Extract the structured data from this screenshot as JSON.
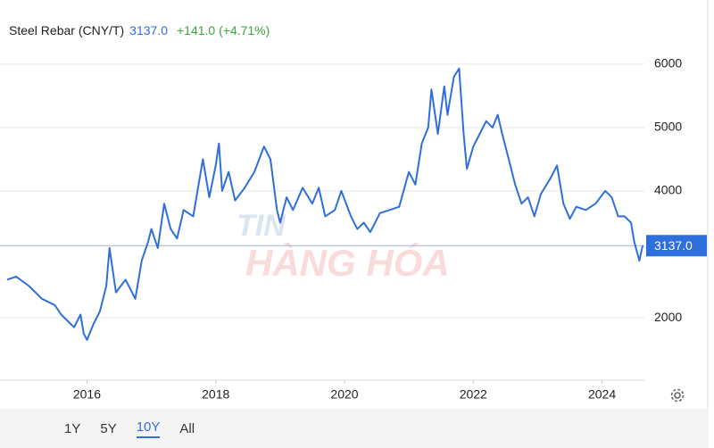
{
  "header": {
    "title": "Steel Rebar (CNY/T)",
    "price": "3137.0",
    "change": "+141.0 (+4.71%)"
  },
  "chart_data": {
    "type": "line",
    "color": "#2f6fdc",
    "x": [
      2014.76,
      2014.9,
      2015.1,
      2015.3,
      2015.5,
      2015.6,
      2015.8,
      2015.9,
      2015.95,
      2016.0,
      2016.1,
      2016.2,
      2016.3,
      2016.35,
      2016.45,
      2016.6,
      2016.75,
      2016.85,
      2016.95,
      2017.0,
      2017.1,
      2017.2,
      2017.3,
      2017.4,
      2017.5,
      2017.65,
      2017.8,
      2017.9,
      2018.0,
      2018.05,
      2018.1,
      2018.2,
      2018.3,
      2018.45,
      2018.6,
      2018.75,
      2018.85,
      2018.95,
      2019.0,
      2019.1,
      2019.2,
      2019.35,
      2019.5,
      2019.6,
      2019.7,
      2019.85,
      2019.95,
      2020.1,
      2020.2,
      2020.3,
      2020.4,
      2020.55,
      2020.7,
      2020.85,
      2021.0,
      2021.1,
      2021.2,
      2021.3,
      2021.35,
      2021.45,
      2021.55,
      2021.6,
      2021.7,
      2021.78,
      2021.85,
      2021.9,
      2022.0,
      2022.1,
      2022.2,
      2022.3,
      2022.38,
      2022.45,
      2022.55,
      2022.65,
      2022.75,
      2022.85,
      2022.95,
      2023.05,
      2023.2,
      2023.3,
      2023.4,
      2023.5,
      2023.6,
      2023.75,
      2023.9,
      2024.05,
      2024.15,
      2024.25,
      2024.35,
      2024.45,
      2024.5,
      2024.58,
      2024.63
    ],
    "values": [
      2600,
      2650,
      2500,
      2300,
      2200,
      2050,
      1850,
      2050,
      1750,
      1650,
      1900,
      2100,
      2500,
      3100,
      2400,
      2600,
      2300,
      2900,
      3200,
      3400,
      3100,
      3800,
      3400,
      3250,
      3700,
      3600,
      4500,
      3900,
      4400,
      4750,
      4000,
      4300,
      3850,
      4050,
      4300,
      4700,
      4500,
      3700,
      3500,
      3900,
      3700,
      4050,
      3800,
      4050,
      3600,
      3700,
      4000,
      3600,
      3400,
      3500,
      3350,
      3650,
      3700,
      3750,
      4300,
      4100,
      4750,
      5000,
      5600,
      4900,
      5650,
      5200,
      5800,
      5930,
      4900,
      4350,
      4700,
      4900,
      5100,
      5000,
      5200,
      4900,
      4500,
      4100,
      3800,
      3900,
      3600,
      3950,
      4200,
      4400,
      3800,
      3560,
      3750,
      3700,
      3800,
      4000,
      3900,
      3600,
      3600,
      3500,
      3200,
      2900,
      3137
    ],
    "xlim": [
      2014.76,
      2024.63
    ],
    "xticks": [
      2016,
      2018,
      2020,
      2022,
      2024
    ],
    "ylim": [
      1030,
      6870
    ],
    "yticks": [
      2000,
      4000,
      5000,
      6000
    ],
    "grid": true,
    "last_label": "3137.0",
    "watermark": [
      "TIN",
      "HÀNG HÓA"
    ]
  },
  "range_buttons": [
    "1Y",
    "5Y",
    "10Y",
    "All"
  ]
}
